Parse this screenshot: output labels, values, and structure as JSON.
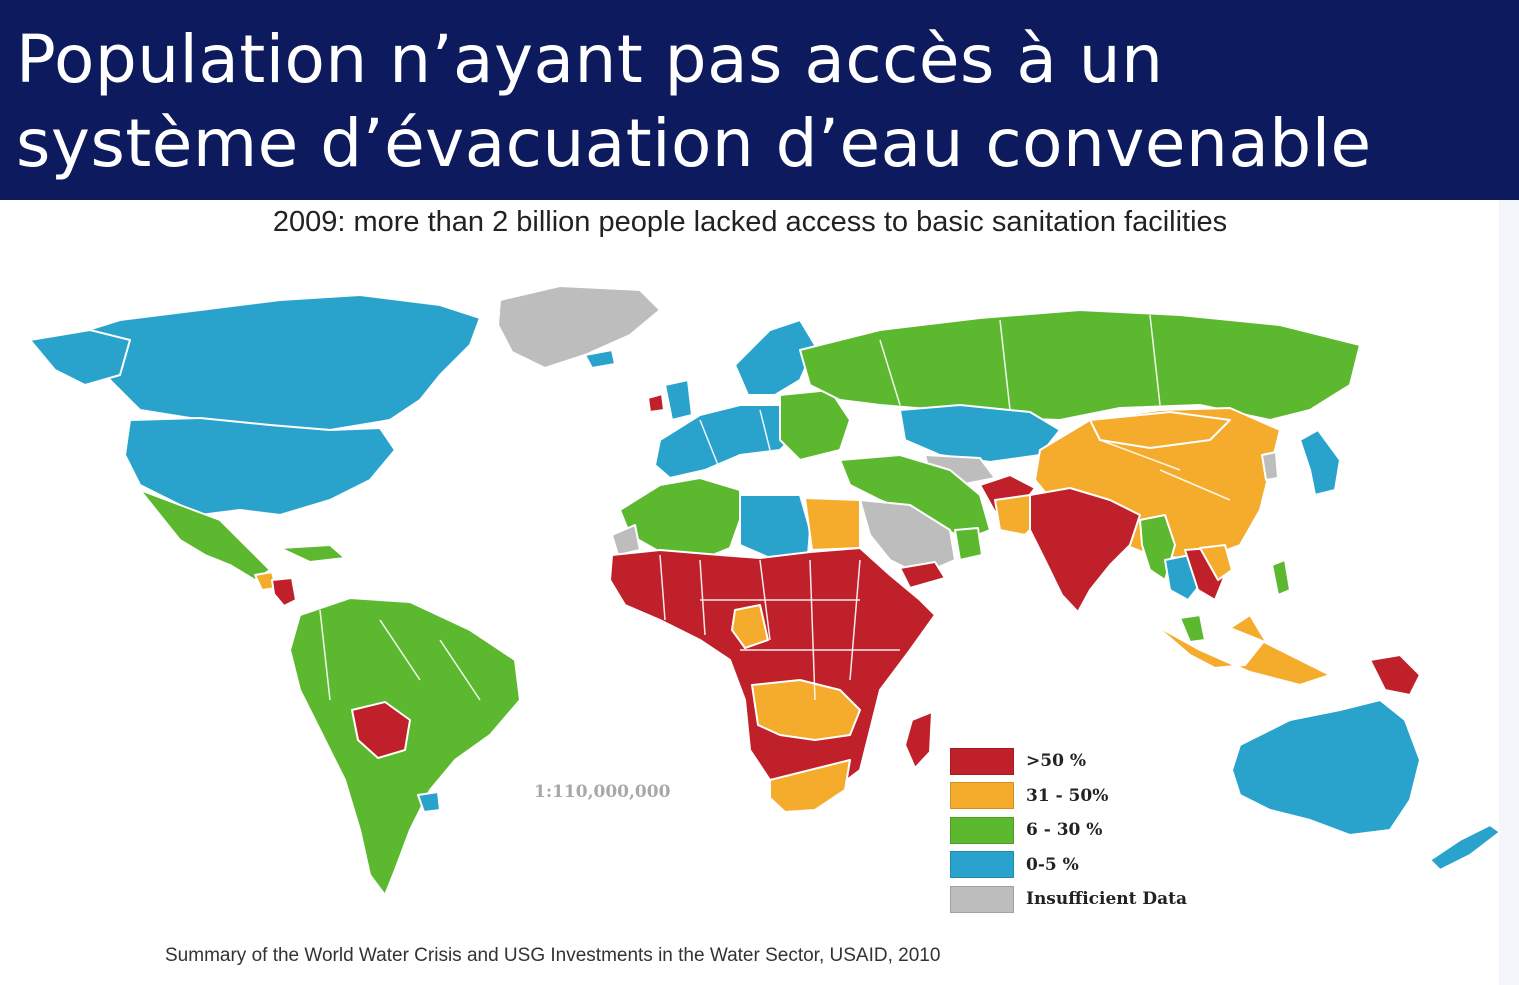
{
  "slide": {
    "title_line1": "Population n’ayant pas accès à un",
    "title_line2": "système d’évacuation d’eau convenable",
    "title_bg": "#0d1b5e"
  },
  "map": {
    "subtitle": "2009: more than 2 billion people lacked access to basic sanitation facilities",
    "scale": "1:110,000,000",
    "source": "Summary of the World Water Crisis and USG Investments in the Water Sector, USAID, 2010",
    "legend": [
      {
        "label": ">50 %",
        "color": "#c0202a"
      },
      {
        "label": "31 - 50%",
        "color": "#f5ab2b"
      },
      {
        "label": "6 - 30 %",
        "color": "#5cb82e"
      },
      {
        "label": "0-5 %",
        "color": "#29a3cc"
      },
      {
        "label": "Insufficient Data",
        "color": "#bdbdbd"
      }
    ]
  }
}
